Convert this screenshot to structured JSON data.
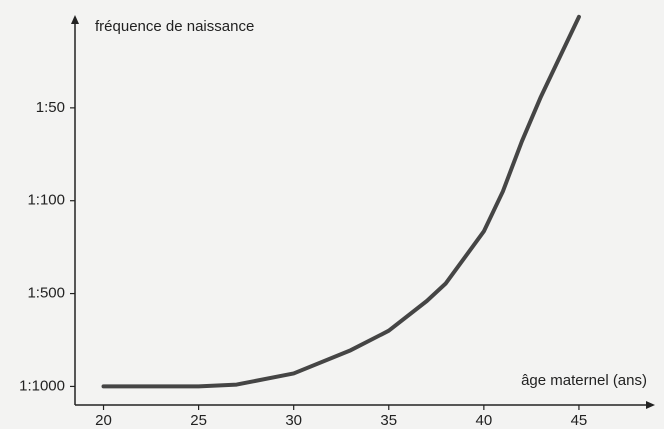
{
  "chart_data": {
    "type": "line",
    "y_axis_label": "fréquence de naissance",
    "x_axis_label": "âge maternel (ans)",
    "x": [
      20,
      25,
      27,
      30,
      33,
      35,
      37,
      38,
      40,
      41,
      42,
      43,
      44,
      45
    ],
    "series": [
      {
        "color": "#454545",
        "values": [
          0,
          0,
          0.02,
          0.14,
          0.39,
          0.6,
          0.92,
          1.11,
          1.67,
          2.1,
          2.64,
          3.12,
          3.55,
          3.98
        ]
      }
    ],
    "xlim": [
      18.5,
      49
    ],
    "xticks": [
      20,
      25,
      30,
      35,
      40,
      45
    ],
    "ylim": [
      -0.2,
      4
    ],
    "yticks": [
      {
        "value": 0,
        "label": "1:1000"
      },
      {
        "value": 1,
        "label": "1:500"
      },
      {
        "value": 2,
        "label": "1:100"
      },
      {
        "value": 3,
        "label": "1:50"
      }
    ],
    "grid": false
  }
}
